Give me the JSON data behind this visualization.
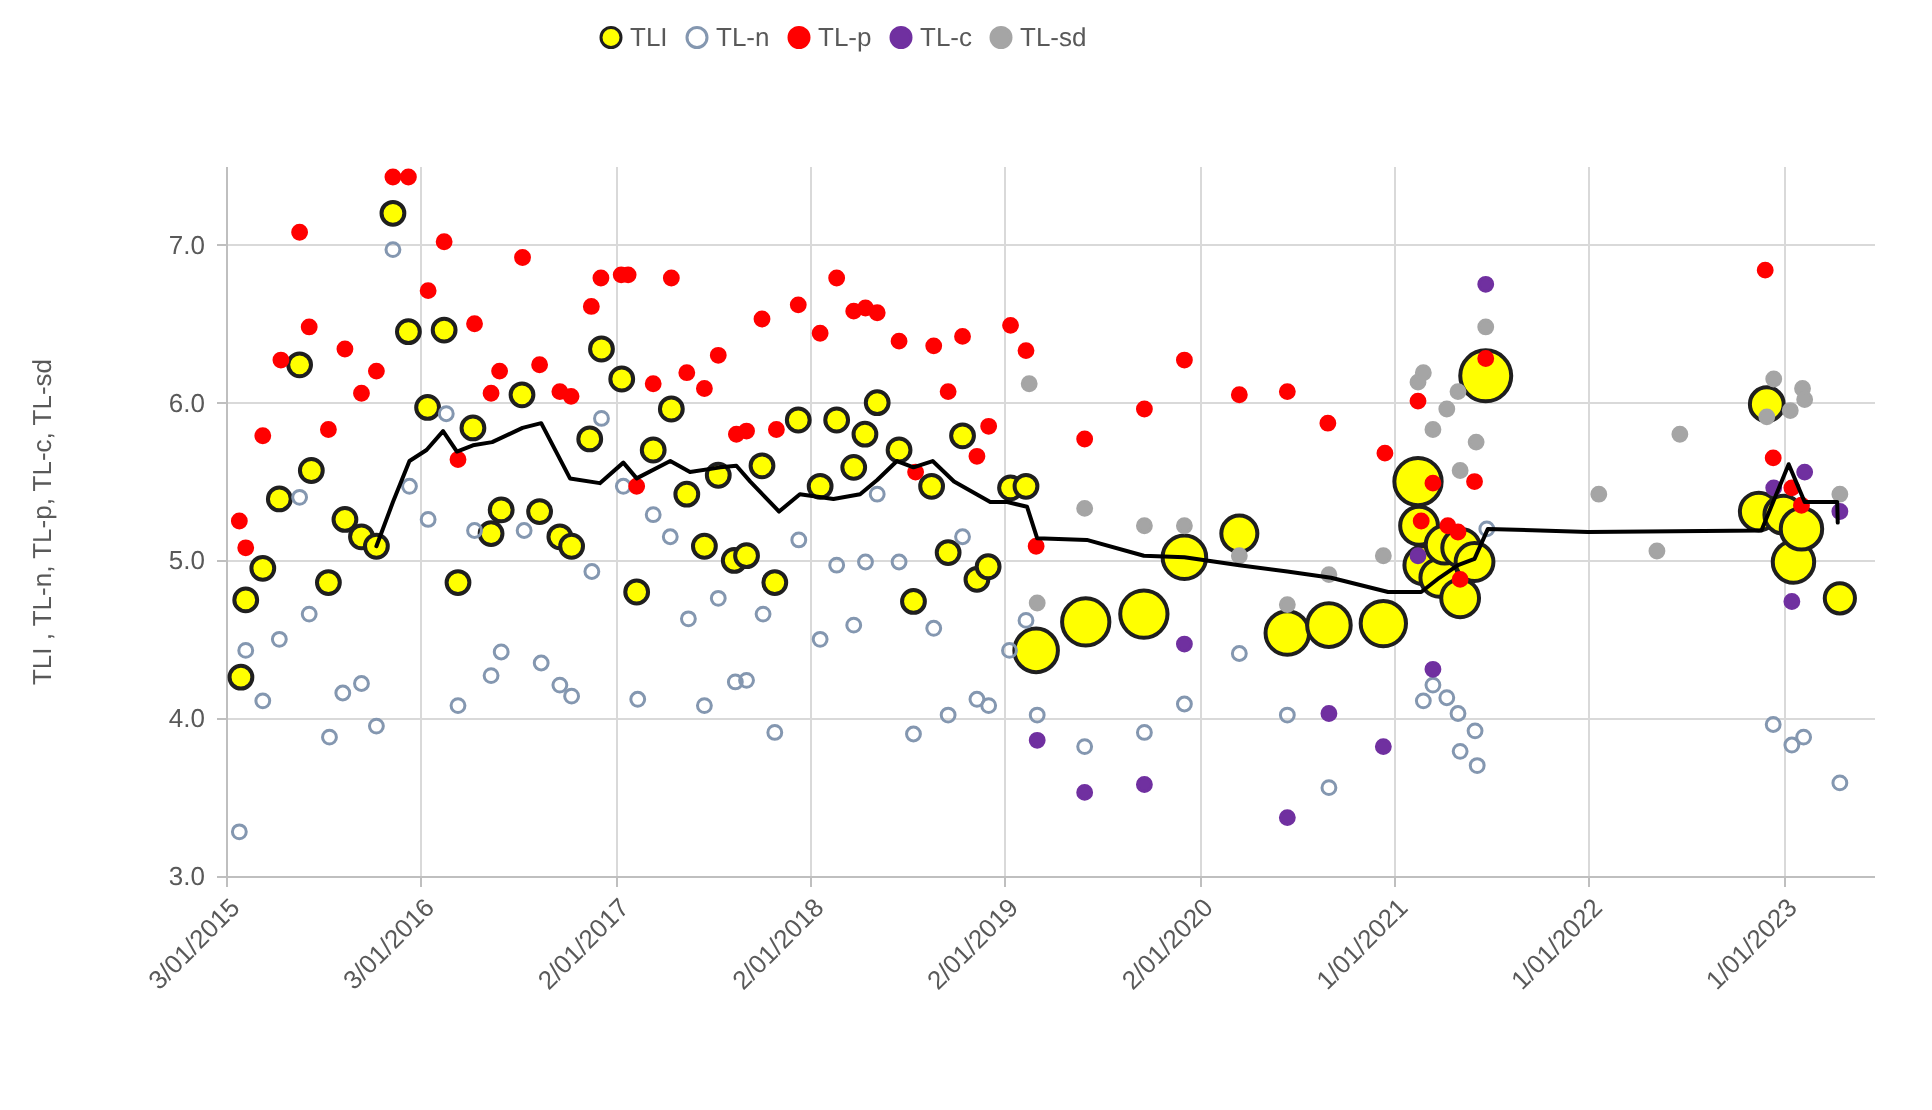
{
  "chart_data": {
    "type": "scatter",
    "ylabel": "TLI , TL-n, TL-p, TL-c, TL-sd",
    "xlim": [
      "2015-01-03",
      "2023-06-20"
    ],
    "xticks": [
      {
        "value": "2015-01-03",
        "label": "3/01/2015"
      },
      {
        "value": "2016-01-03",
        "label": "3/01/2016"
      },
      {
        "value": "2017-01-02",
        "label": "2/01/2017"
      },
      {
        "value": "2018-01-02",
        "label": "2/01/2018"
      },
      {
        "value": "2019-01-02",
        "label": "2/01/2019"
      },
      {
        "value": "2020-01-02",
        "label": "2/01/2020"
      },
      {
        "value": "2021-01-01",
        "label": "1/01/2021"
      },
      {
        "value": "2022-01-01",
        "label": "1/01/2022"
      },
      {
        "value": "2023-01-01",
        "label": "1/01/2023"
      }
    ],
    "ylim": [
      3,
      7.5
    ],
    "yticks": [
      {
        "value": 3,
        "label": "3.0"
      },
      {
        "value": 4,
        "label": "4.0"
      },
      {
        "value": 5,
        "label": "5.0"
      },
      {
        "value": 6,
        "label": "6.0"
      },
      {
        "value": 7,
        "label": "7.0"
      }
    ],
    "grid": true,
    "legend": "top",
    "marker": "circle",
    "series": [
      {
        "name": "TLI",
        "type": "bubble",
        "color": "#ffff00",
        "x": [
          "2015-01-31",
          "2015-02-09",
          "2015-03-13",
          "2015-04-13",
          "2015-05-21",
          "2015-06-12",
          "2015-07-14",
          "2015-08-14",
          "2015-09-14",
          "2015-10-12",
          "2015-11-12",
          "2015-12-11",
          "2016-01-16",
          "2016-02-16",
          "2016-03-13",
          "2016-04-10",
          "2016-05-14",
          "2016-06-02",
          "2016-07-11",
          "2016-08-13",
          "2016-09-20",
          "2016-10-12",
          "2016-11-15",
          "2016-12-07",
          "2017-01-14",
          "2017-02-11",
          "2017-03-14",
          "2017-04-17",
          "2017-05-16",
          "2017-06-18",
          "2017-07-14",
          "2017-08-13",
          "2017-09-05",
          "2017-10-04",
          "2017-10-28",
          "2017-12-11",
          "2018-01-21",
          "2018-02-21",
          "2018-03-25",
          "2018-04-15",
          "2018-05-08",
          "2018-06-18",
          "2018-07-15",
          "2018-08-18",
          "2018-09-18",
          "2018-10-15",
          "2018-11-11",
          "2018-12-02",
          "2019-01-13",
          "2019-02-11",
          "2019-03-02",
          "2019-06-03",
          "2019-09-20",
          "2019-12-05",
          "2020-03-17",
          "2020-06-15",
          "2020-09-01",
          "2020-12-12",
          "2021-02-15",
          "2021-02-17",
          "2021-02-25",
          "2021-03-27",
          "2021-04-06",
          "2021-05-07",
          "2021-05-05",
          "2021-06-01",
          "2021-06-22",
          "2022-12-01",
          "2022-11-16",
          "2023-01-01",
          "2023-01-20",
          "2023-02-04",
          "2023-04-17"
        ],
        "values": [
          4.26,
          4.75,
          4.95,
          5.39,
          6.24,
          5.57,
          4.86,
          5.26,
          5.15,
          5.09,
          7.2,
          6.45,
          5.97,
          6.46,
          4.86,
          5.84,
          5.17,
          5.32,
          6.05,
          5.31,
          5.15,
          5.09,
          5.77,
          6.34,
          6.15,
          4.8,
          5.7,
          5.96,
          5.42,
          5.09,
          5.54,
          5.0,
          5.03,
          5.6,
          4.86,
          5.89,
          5.47,
          5.89,
          5.59,
          5.8,
          6.0,
          5.7,
          4.74,
          5.47,
          5.05,
          5.79,
          4.88,
          4.96,
          5.46,
          5.47,
          4.43,
          4.61,
          4.66,
          5.02,
          5.17,
          4.54,
          4.59,
          4.6,
          5.5,
          5.22,
          4.97,
          4.89,
          5.1,
          5.08,
          4.76,
          4.99,
          6.17,
          5.99,
          5.31,
          5.29,
          4.99,
          5.2,
          4.76
        ],
        "sizes": [
          0.2,
          0.2,
          0.2,
          0.2,
          0.2,
          0.2,
          0.2,
          0.2,
          0.2,
          0.2,
          0.2,
          0.2,
          0.2,
          0.2,
          0.2,
          0.2,
          0.2,
          0.2,
          0.2,
          0.2,
          0.2,
          0.2,
          0.2,
          0.2,
          0.2,
          0.2,
          0.2,
          0.2,
          0.2,
          0.2,
          0.2,
          0.2,
          0.2,
          0.2,
          0.2,
          0.2,
          0.2,
          0.2,
          0.2,
          0.2,
          0.2,
          0.2,
          0.2,
          0.2,
          0.2,
          0.2,
          0.2,
          0.2,
          0.2,
          0.2,
          0.73,
          0.86,
          0.86,
          0.73,
          0.5,
          0.73,
          0.73,
          0.79,
          0.86,
          0.55,
          0.55,
          0.55,
          0.55,
          0.55,
          0.55,
          0.55,
          1,
          0.44,
          0.55,
          0.55,
          0.66,
          0.66,
          0.35
        ]
      },
      {
        "name": "TL-n",
        "color": "#8497b0",
        "x": [
          "2015-01-28",
          "2015-02-09",
          "2015-03-13",
          "2015-04-13",
          "2015-05-21",
          "2015-06-08",
          "2015-07-16",
          "2015-08-10",
          "2015-09-14",
          "2015-10-12",
          "2015-11-12",
          "2015-12-13",
          "2016-01-17",
          "2016-02-20",
          "2016-03-13",
          "2016-04-13",
          "2016-05-14",
          "2016-06-02",
          "2016-07-15",
          "2016-08-16",
          "2016-09-20",
          "2016-10-12",
          "2016-11-19",
          "2016-12-07",
          "2017-01-17",
          "2017-02-13",
          "2017-03-14",
          "2017-04-15",
          "2017-05-19",
          "2017-06-18",
          "2017-07-14",
          "2017-08-15",
          "2017-09-05",
          "2017-10-06",
          "2017-10-28",
          "2017-12-12",
          "2018-01-21",
          "2018-02-21",
          "2018-03-25",
          "2018-04-16",
          "2018-05-08",
          "2018-06-18",
          "2018-07-15",
          "2018-08-22",
          "2018-09-18",
          "2018-10-15",
          "2018-11-11",
          "2018-12-03",
          "2019-01-11",
          "2019-02-11",
          "2019-03-04",
          "2019-06-01",
          "2019-09-21",
          "2019-12-05",
          "2020-03-17",
          "2020-06-15",
          "2020-09-01",
          "2021-02-25",
          "2021-03-15",
          "2021-04-10",
          "2021-05-01",
          "2021-05-05",
          "2021-06-02",
          "2021-06-06",
          "2021-06-24",
          "2022-12-13",
          "2023-01-17",
          "2023-02-08",
          "2023-04-17"
        ],
        "values": [
          3.28,
          4.43,
          4.11,
          4.5,
          5.4,
          4.66,
          3.88,
          4.16,
          4.22,
          3.95,
          6.97,
          5.47,
          5.26,
          5.93,
          4.08,
          5.19,
          4.27,
          4.42,
          5.19,
          4.35,
          4.21,
          4.14,
          4.93,
          5.9,
          5.47,
          4.12,
          5.29,
          5.15,
          4.63,
          4.08,
          4.76,
          4.23,
          4.24,
          4.66,
          3.91,
          5.13,
          4.5,
          4.97,
          4.59,
          4.99,
          5.42,
          4.99,
          3.9,
          4.57,
          4.02,
          5.15,
          4.12,
          4.08,
          4.43,
          4.62,
          4.02,
          3.82,
          3.91,
          4.09,
          4.41,
          4.02,
          3.56,
          4.11,
          4.21,
          4.13,
          4.03,
          3.79,
          3.92,
          3.7,
          5.2,
          3.96,
          3.83,
          3.88,
          3.59
        ]
      },
      {
        "name": "TL-p",
        "color": "#ff0000",
        "x": [
          "2015-01-28",
          "2015-02-09",
          "2015-03-13",
          "2015-04-16",
          "2015-05-21",
          "2015-06-08",
          "2015-07-14",
          "2015-08-14",
          "2015-09-14",
          "2015-10-12",
          "2015-11-12",
          "2015-12-11",
          "2016-01-17",
          "2016-02-16",
          "2016-03-13",
          "2016-04-13",
          "2016-05-14",
          "2016-05-30",
          "2016-07-12",
          "2016-08-13",
          "2016-09-20",
          "2016-10-11",
          "2016-11-18",
          "2016-12-06",
          "2017-01-13",
          "2017-01-26",
          "2017-02-11",
          "2017-03-14",
          "2017-04-17",
          "2017-05-16",
          "2017-06-18",
          "2017-07-14",
          "2017-08-17",
          "2017-09-05",
          "2017-10-04",
          "2017-10-31",
          "2017-12-11",
          "2018-01-21",
          "2018-02-21",
          "2018-03-25",
          "2018-04-16",
          "2018-05-08",
          "2018-06-18",
          "2018-07-19",
          "2018-08-22",
          "2018-09-18",
          "2018-10-15",
          "2018-11-11",
          "2018-12-03",
          "2019-01-13",
          "2019-02-11",
          "2019-03-02",
          "2019-06-01",
          "2019-09-21",
          "2019-12-05",
          "2020-03-17",
          "2020-06-15",
          "2020-08-30",
          "2020-12-15",
          "2021-02-15",
          "2021-02-21",
          "2021-03-15",
          "2021-04-12",
          "2021-05-01",
          "2021-05-05",
          "2021-06-01",
          "2021-06-22",
          "2022-11-28",
          "2022-12-13",
          "2023-01-17",
          "2023-02-04"
        ],
        "values": [
          5.25,
          5.08,
          5.79,
          6.27,
          7.08,
          6.48,
          5.83,
          6.34,
          6.06,
          6.2,
          7.43,
          7.43,
          6.71,
          7.02,
          5.64,
          6.5,
          6.06,
          6.2,
          6.92,
          6.24,
          6.07,
          6.04,
          6.61,
          6.79,
          6.81,
          6.81,
          5.47,
          6.12,
          6.79,
          6.19,
          6.09,
          6.3,
          5.8,
          5.82,
          6.53,
          5.83,
          6.62,
          6.44,
          6.79,
          6.58,
          6.6,
          6.57,
          6.39,
          5.56,
          6.36,
          6.07,
          6.42,
          5.66,
          5.85,
          6.49,
          6.33,
          5.09,
          5.77,
          5.96,
          6.27,
          6.05,
          6.07,
          5.87,
          5.68,
          6.01,
          5.25,
          5.49,
          5.22,
          5.18,
          4.88,
          5.5,
          6.28,
          6.84,
          5.65,
          5.46,
          5.35
        ]
      },
      {
        "name": "TL-c",
        "color": "#7030a0",
        "x": [
          "2019-03-04",
          "2019-06-01",
          "2019-09-21",
          "2019-12-05",
          "2020-06-15",
          "2020-09-01",
          "2020-12-12",
          "2021-02-15",
          "2021-03-15",
          "2021-06-22",
          "2022-12-14",
          "2023-01-17",
          "2023-02-10",
          "2023-04-17"
        ],
        "values": [
          3.86,
          3.53,
          3.58,
          4.47,
          3.37,
          4.03,
          3.82,
          5.03,
          4.31,
          6.75,
          5.46,
          4.74,
          5.56,
          5.31
        ]
      },
      {
        "name": "TL-sd",
        "color": "#a5a5a5",
        "x": [
          "2019-02-17",
          "2019-03-04",
          "2019-06-01",
          "2019-09-21",
          "2019-12-05",
          "2020-03-17",
          "2020-06-15",
          "2020-09-01",
          "2020-12-12",
          "2021-02-15",
          "2021-02-25",
          "2021-03-15",
          "2021-04-10",
          "2021-05-01",
          "2021-05-05",
          "2021-06-04",
          "2021-06-22",
          "2022-01-20",
          "2022-05-09",
          "2022-06-21",
          "2022-12-01",
          "2022-12-14",
          "2023-01-14",
          "2023-02-06",
          "2023-02-10",
          "2023-04-17"
        ],
        "values": [
          6.12,
          4.73,
          5.33,
          5.22,
          5.22,
          5.03,
          4.72,
          4.91,
          5.03,
          6.13,
          6.19,
          5.83,
          5.96,
          6.07,
          5.57,
          5.75,
          6.48,
          5.42,
          5.06,
          5.8,
          5.91,
          6.15,
          5.95,
          6.09,
          6.02,
          5.42
        ]
      },
      {
        "type": "line",
        "color": "#000000",
        "marker": "none",
        "x": [
          "2015-10-12",
          "2015-11-12",
          "2015-12-13",
          "2016-01-14",
          "2016-02-14",
          "2016-03-11",
          "2016-04-10",
          "2016-05-16",
          "2016-07-12",
          "2016-08-16",
          "2016-10-09",
          "2016-12-04",
          "2017-01-17",
          "2017-02-11",
          "2017-04-15",
          "2017-05-22",
          "2017-07-18",
          "2017-08-17",
          "2017-09-12",
          "2017-11-05",
          "2017-12-14",
          "2018-02-15",
          "2018-04-06",
          "2018-05-08",
          "2018-06-14",
          "2018-07-15",
          "2018-08-20",
          "2018-09-29",
          "2018-12-06",
          "2019-01-07",
          "2019-02-13",
          "2019-03-04",
          "2019-06-05",
          "2019-09-20",
          "2019-12-05",
          "2020-03-17",
          "2020-06-15",
          "2020-09-05",
          "2020-12-21",
          "2021-02-21",
          "2021-03-27",
          "2021-05-01",
          "2021-06-01",
          "2021-06-26",
          "2021-12-31",
          "2022-11-21",
          "2023-01-11",
          "2023-02-10",
          "2023-04-12",
          "2023-04-13"
        ],
        "values": [
          5.09,
          5.37,
          5.63,
          5.7,
          5.82,
          5.69,
          5.73,
          5.75,
          5.84,
          5.87,
          5.52,
          5.49,
          5.62,
          5.52,
          5.63,
          5.56,
          5.59,
          5.6,
          5.5,
          5.31,
          5.42,
          5.39,
          5.42,
          5.51,
          5.63,
          5.59,
          5.63,
          5.5,
          5.37,
          5.37,
          5.34,
          5.14,
          5.13,
          5.03,
          5.02,
          4.97,
          4.93,
          4.89,
          4.8,
          4.8,
          4.89,
          4.97,
          5.01,
          5.2,
          5.18,
          5.19,
          5.61,
          5.37,
          5.37,
          5.24
        ]
      }
    ]
  }
}
